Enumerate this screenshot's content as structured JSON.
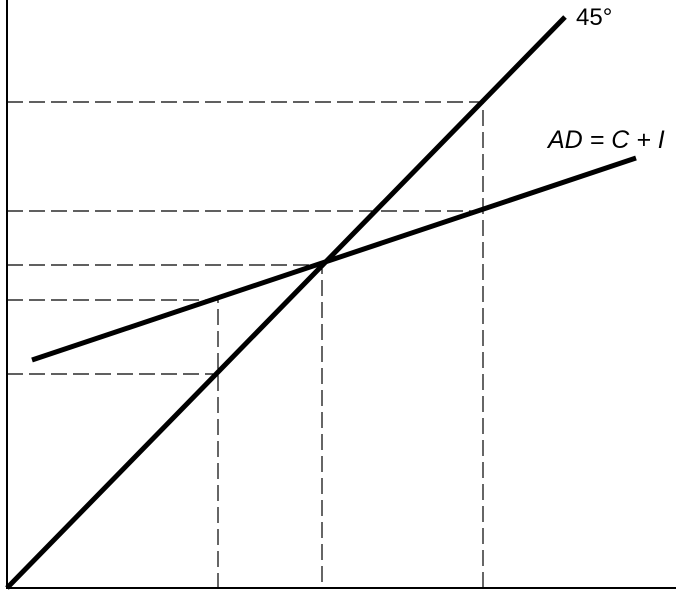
{
  "labels": {
    "line_45": "45°",
    "line_ad": "AD = C + I"
  }
}
